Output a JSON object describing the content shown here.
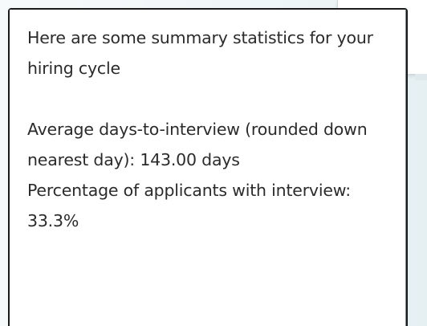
{
  "output": {
    "intro_line_1": "Here are some summary statistics for your",
    "intro_line_2": "hiring cycle",
    "avg_line_1": "Average days-to-interview (rounded down",
    "avg_line_2": "nearest day): 143.00 days",
    "pct_line_1": "Percentage of applicants with interview:",
    "pct_line_2": "33.3%"
  }
}
